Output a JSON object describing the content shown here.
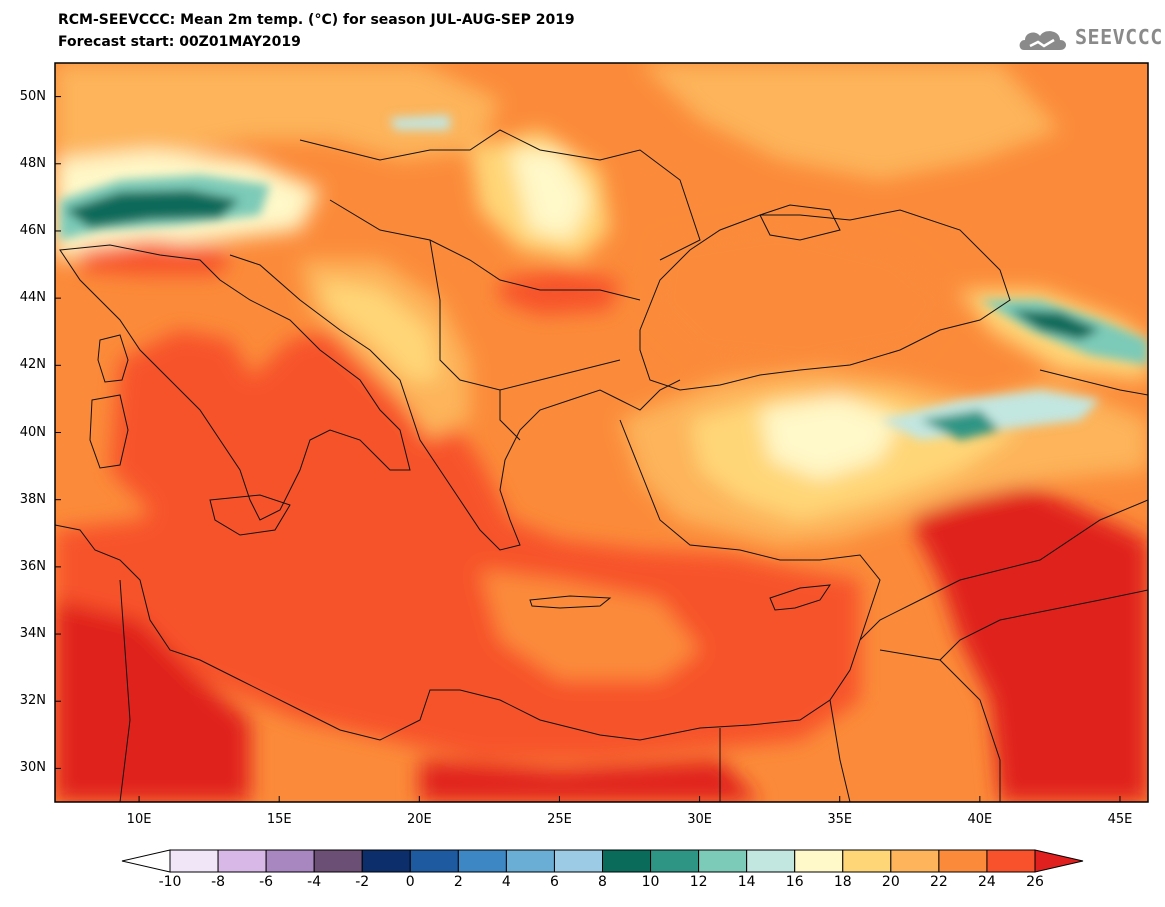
{
  "header": {
    "title_line1": "RCM-SEEVCCC: Mean 2m temp. (°C) for season JUL-AUG-SEP 2019",
    "title_line2": "Forecast start: 00Z01MAY2019",
    "logo_text": "SEEVCCC"
  },
  "map": {
    "variable": "Mean 2m temp. (°C)",
    "lon_range": [
      7,
      46
    ],
    "lat_range": [
      29,
      51
    ],
    "lat_ticks": [
      {
        "value": 30,
        "label": "30N"
      },
      {
        "value": 32,
        "label": "32N"
      },
      {
        "value": 34,
        "label": "34N"
      },
      {
        "value": 36,
        "label": "36N"
      },
      {
        "value": 38,
        "label": "38N"
      },
      {
        "value": 40,
        "label": "40N"
      },
      {
        "value": 42,
        "label": "42N"
      },
      {
        "value": 44,
        "label": "44N"
      },
      {
        "value": 46,
        "label": "46N"
      },
      {
        "value": 48,
        "label": "48N"
      },
      {
        "value": 50,
        "label": "50N"
      }
    ],
    "lon_ticks": [
      {
        "value": 10,
        "label": "10E"
      },
      {
        "value": 15,
        "label": "15E"
      },
      {
        "value": 20,
        "label": "20E"
      },
      {
        "value": 25,
        "label": "25E"
      },
      {
        "value": 30,
        "label": "30E"
      },
      {
        "value": 35,
        "label": "35E"
      },
      {
        "value": 40,
        "label": "40E"
      },
      {
        "value": 45,
        "label": "45E"
      }
    ]
  },
  "colorbar": {
    "levels": [
      "-10",
      "-8",
      "-6",
      "-4",
      "-2",
      "0",
      "2",
      "4",
      "6",
      "8",
      "10",
      "12",
      "14",
      "16",
      "18",
      "20",
      "22",
      "24",
      "26"
    ],
    "colors": [
      "#ffffff",
      "#f0e6f7",
      "#d8b8e6",
      "#a886c0",
      "#6b4f74",
      "#0c2f6b",
      "#1e5aa0",
      "#3c87c4",
      "#6aaed6",
      "#9ccbe6",
      "#0a6b5a",
      "#2e9585",
      "#7ccab8",
      "#c2e6e0",
      "#fff8c8",
      "#ffd677",
      "#fdb45a",
      "#fb8b3a",
      "#f7522c",
      "#e0201e"
    ]
  }
}
